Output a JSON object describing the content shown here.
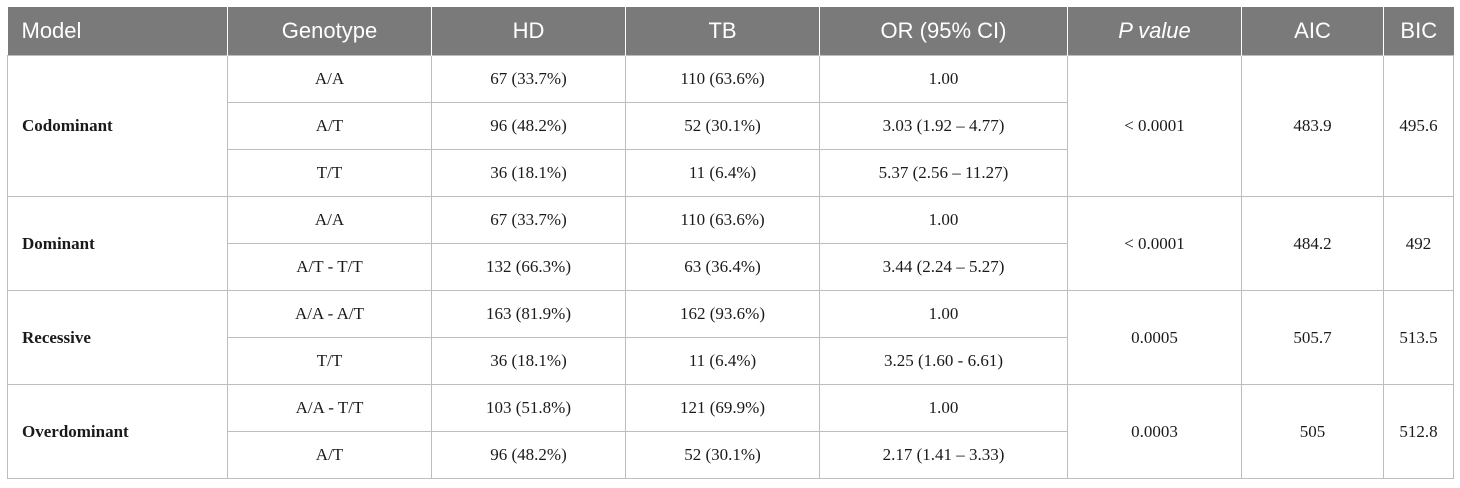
{
  "table": {
    "headers": [
      "Model",
      "Genotype",
      "HD",
      "TB",
      "OR (95% CI)",
      "P value",
      "AIC",
      "BIC"
    ],
    "groups": [
      {
        "model": "Codominant",
        "p_value": "< 0.0001",
        "aic": "483.9",
        "bic": "495.6",
        "rows": [
          {
            "genotype": "A/A",
            "hd": "67 (33.7%)",
            "tb": "110 (63.6%)",
            "or": "1.00"
          },
          {
            "genotype": "A/T",
            "hd": "96 (48.2%)",
            "tb": "52 (30.1%)",
            "or": "3.03 (1.92 – 4.77)"
          },
          {
            "genotype": "T/T",
            "hd": "36 (18.1%)",
            "tb": "11 (6.4%)",
            "or": "5.37 (2.56 – 11.27)"
          }
        ]
      },
      {
        "model": "Dominant",
        "p_value": "< 0.0001",
        "aic": "484.2",
        "bic": "492",
        "rows": [
          {
            "genotype": "A/A",
            "hd": "67 (33.7%)",
            "tb": "110 (63.6%)",
            "or": "1.00"
          },
          {
            "genotype": "A/T - T/T",
            "hd": "132 (66.3%)",
            "tb": "63 (36.4%)",
            "or": "3.44 (2.24 – 5.27)"
          }
        ]
      },
      {
        "model": "Recessive",
        "p_value": "0.0005",
        "aic": "505.7",
        "bic": "513.5",
        "rows": [
          {
            "genotype": "A/A - A/T",
            "hd": "163 (81.9%)",
            "tb": "162 (93.6%)",
            "or": "1.00"
          },
          {
            "genotype": "T/T",
            "hd": "36 (18.1%)",
            "tb": "11 (6.4%)",
            "or": "3.25 (1.60 - 6.61)"
          }
        ]
      },
      {
        "model": "Overdominant",
        "p_value": "0.0003",
        "aic": "505",
        "bic": "512.8",
        "rows": [
          {
            "genotype": "A/A - T/T",
            "hd": "103 (51.8%)",
            "tb": "121 (69.9%)",
            "or": "1.00"
          },
          {
            "genotype": "A/T",
            "hd": "96 (48.2%)",
            "tb": "52 (30.1%)",
            "or": "2.17 (1.41 – 3.33)"
          }
        ]
      }
    ]
  },
  "colors": {
    "header_bg": "#7a7a7a",
    "header_text": "#ffffff",
    "border": "#bdbdbd"
  }
}
